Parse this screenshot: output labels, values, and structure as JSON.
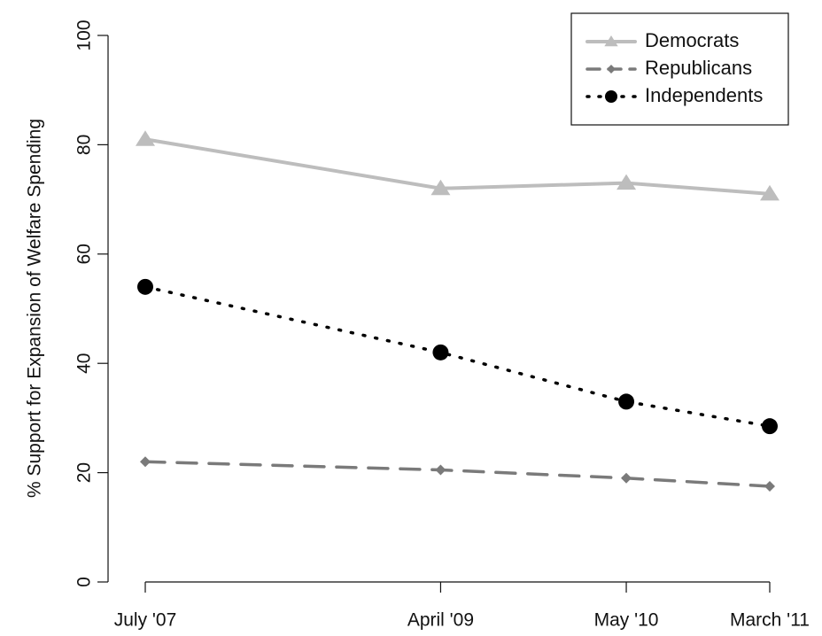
{
  "chart_data": {
    "type": "line",
    "title": "",
    "xlabel": "",
    "ylabel": "% Support for Expansion of Welfare Spending",
    "x": [
      2007.5,
      2009.25,
      2010.35,
      2011.2
    ],
    "x_tick_labels": [
      "July '07",
      "April '09",
      "May '10",
      "March '11"
    ],
    "ylim": [
      0,
      100
    ],
    "y_ticks": [
      0,
      20,
      40,
      60,
      80,
      100
    ],
    "grid": false,
    "legend_position": "top-right",
    "series": [
      {
        "name": "Democrats",
        "values": [
          81,
          72,
          73,
          71
        ],
        "color": "#bdbdbd",
        "line_style": "solid",
        "marker": "triangle"
      },
      {
        "name": "Republicans",
        "values": [
          22,
          20.5,
          19,
          17.5
        ],
        "color": "#7a7a7a",
        "line_style": "dashed",
        "marker": "diamond"
      },
      {
        "name": "Independents",
        "values": [
          54,
          42,
          33,
          28.5
        ],
        "color": "#000000",
        "line_style": "dotted",
        "marker": "circle"
      }
    ]
  }
}
